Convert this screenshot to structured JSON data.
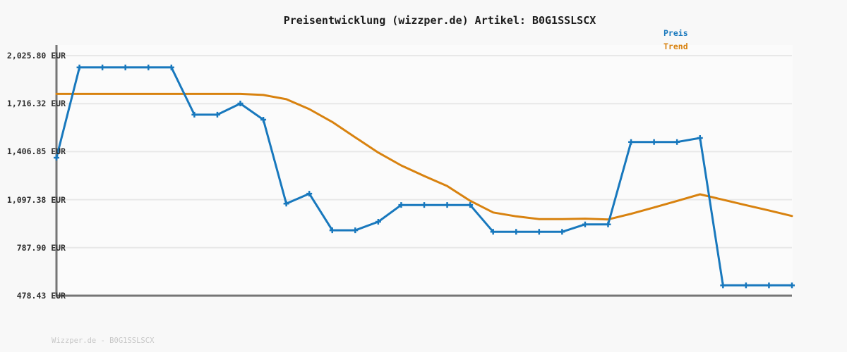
{
  "title": "Preisentwicklung (wizzper.de) Artikel: B0G1SSLSCX",
  "legend": [
    {
      "label": "Preis"
    },
    {
      "label": "Trend"
    }
  ],
  "footer": "Wizzper.de - B0G1SSLSCX",
  "colors": {
    "preis": "#1878bd",
    "trend": "#d8820f",
    "grid": "#e8e8e8",
    "axis": "#757575",
    "tick_text": "#2e2e2e",
    "footer_text": "#c8c8c8",
    "background": "#f8f8f8",
    "plot_background": "#fbfbfb",
    "title_text": "#1c1c1c"
  },
  "chart_data": {
    "type": "line",
    "title": "Preisentwicklung (wizzper.de) Artikel: B0G1SSLSCX",
    "xlabel": "",
    "ylabel": "EUR",
    "x_axis_labels": "none",
    "n_points": 33,
    "ylim": [
      478.43,
      2025.8
    ],
    "grid": "horizontal",
    "legend_position": "top-right",
    "y_ticks": [
      {
        "label": "2,025.80 EUR",
        "value": 2025.8
      },
      {
        "label": "1,716.32 EUR",
        "value": 1716.32
      },
      {
        "label": "1,406.85 EUR",
        "value": 1406.85
      },
      {
        "label": "1,097.38 EUR",
        "value": 1097.38
      },
      {
        "label": "787.90 EUR",
        "value": 787.9
      },
      {
        "label": "478.43 EUR",
        "value": 478.43
      }
    ],
    "series": [
      {
        "name": "Preis",
        "color": "#1878bd",
        "marker": "plus",
        "values": [
          1368,
          1950,
          1950,
          1950,
          1950,
          1950,
          1645,
          1645,
          1717,
          1613,
          1072,
          1136,
          900,
          900,
          955,
          1063,
          1063,
          1063,
          1063,
          890,
          890,
          890,
          890,
          938,
          938,
          1469,
          1469,
          1469,
          1495,
          545,
          545,
          545,
          545
        ]
      },
      {
        "name": "Trend",
        "color": "#d8820f",
        "marker": "none",
        "values": [
          1779,
          1779,
          1779,
          1779,
          1779,
          1779,
          1779,
          1779,
          1779,
          1772,
          1745,
          1681,
          1598,
          1499,
          1401,
          1318,
          1250,
          1185,
          1090,
          1015,
          990,
          972,
          972,
          975,
          970,
          1006,
          1047,
          1089,
          1132,
          1097,
          1062,
          1028,
          992
        ]
      }
    ]
  }
}
